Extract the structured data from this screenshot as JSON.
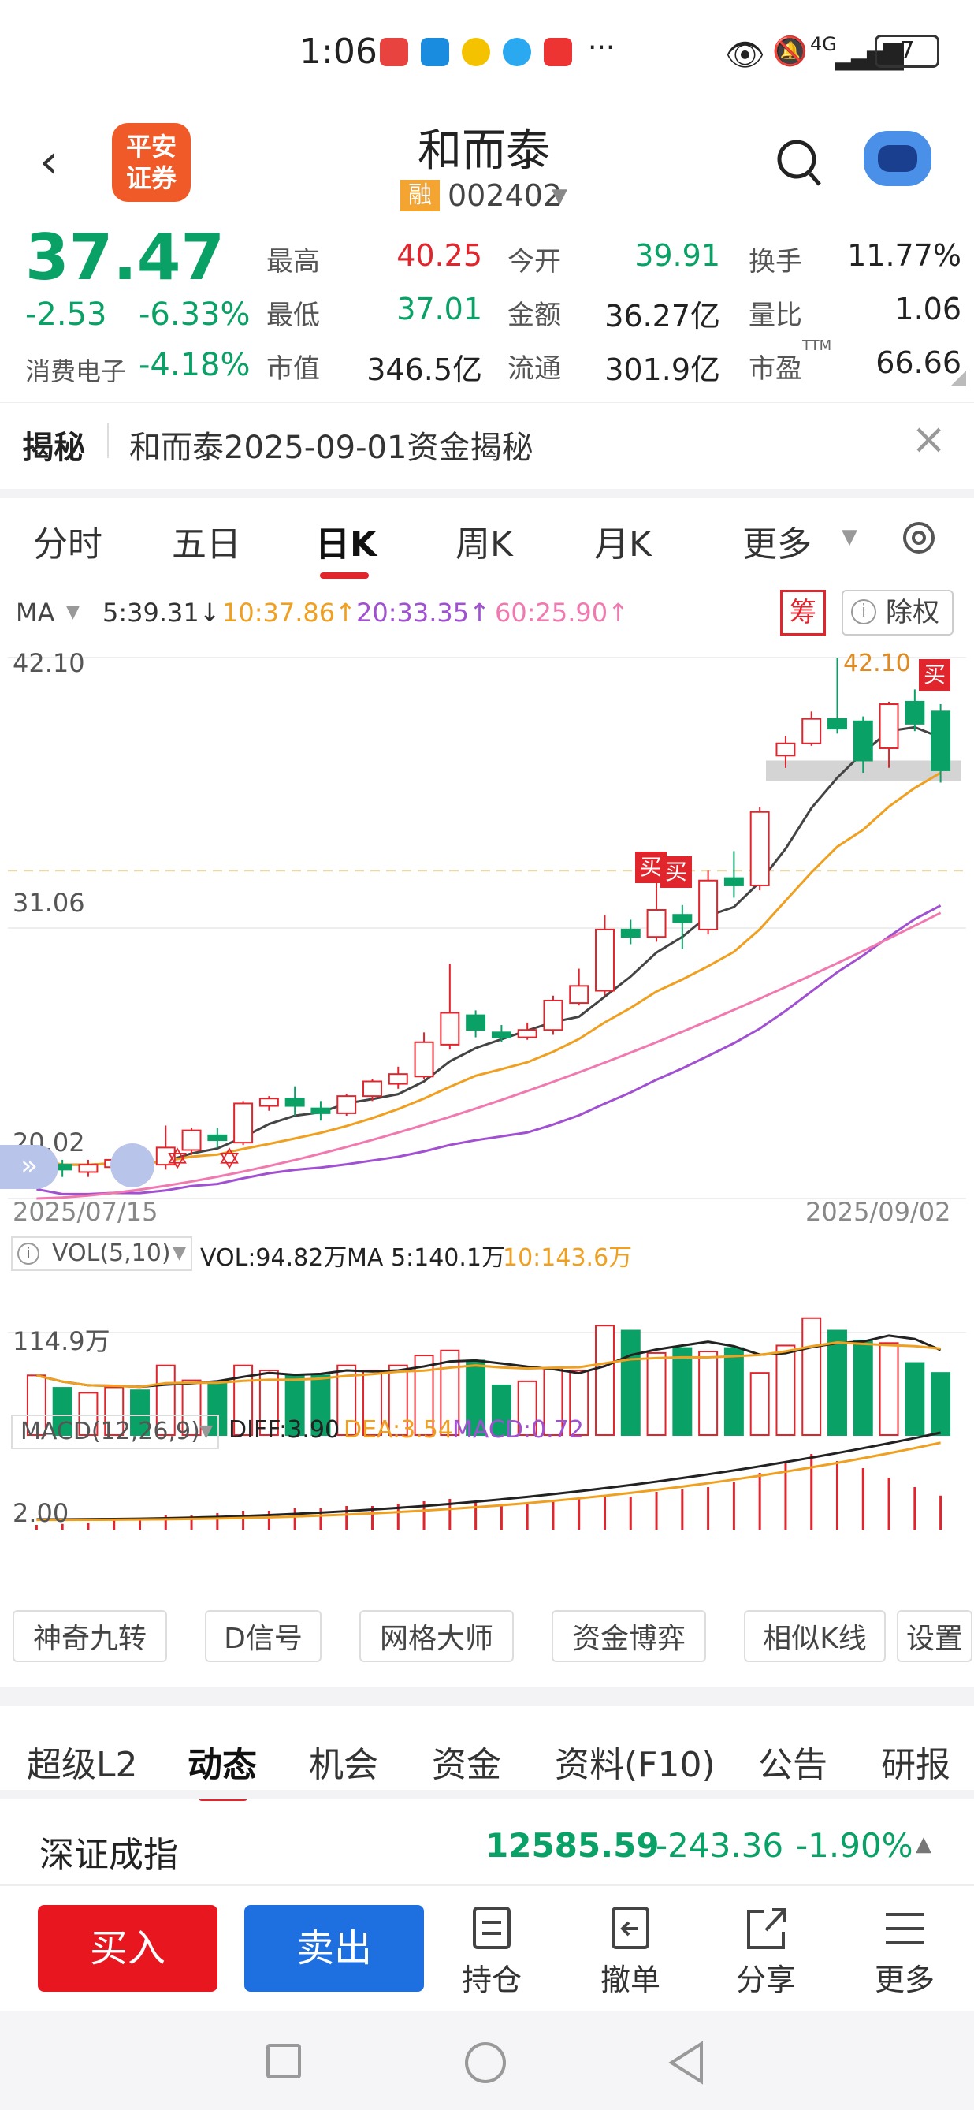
{
  "status": {
    "time": "1:06",
    "dots": "···",
    "net": "4G",
    "battery": "7"
  },
  "header": {
    "title": "和而泰",
    "rong": "融",
    "code": "002402",
    "logo_line1": "平安",
    "logo_line2": "证券"
  },
  "quote": {
    "price": "37.47",
    "change": "-2.53",
    "pct": "-6.33%",
    "sector": "消费电子",
    "sector_pct": "-4.18%",
    "fields": [
      {
        "k": "最高",
        "v": "40.25",
        "c": "red"
      },
      {
        "k": "今开",
        "v": "39.91",
        "c": "green"
      },
      {
        "k": "换手",
        "v": "11.77%",
        "c": "dark"
      },
      {
        "k": "最低",
        "v": "37.01",
        "c": "green"
      },
      {
        "k": "金额",
        "v": "36.27亿",
        "c": "dark"
      },
      {
        "k": "量比",
        "v": "1.06",
        "c": "dark"
      },
      {
        "k": "市值",
        "v": "346.5亿",
        "c": "dark"
      },
      {
        "k": "流通",
        "v": "301.9亿",
        "c": "dark"
      },
      {
        "k": "市盈",
        "v": "66.66",
        "c": "dark"
      }
    ],
    "ttm": "TTM"
  },
  "banner": {
    "label": "揭秘",
    "text": "和而泰2025-09-01资金揭秘"
  },
  "tabs": {
    "items": [
      "分时",
      "五日",
      "日K",
      "周K",
      "月K"
    ],
    "more": "更多",
    "active": "日K"
  },
  "ma": {
    "label": "MA",
    "ma5": "5:39.31↓",
    "ma10": "10:37.86↑",
    "ma20": "20:33.35↑",
    "ma60": "60:25.90↑",
    "chou": "筹",
    "chuquan": "除权"
  },
  "axis": {
    "top": "42.10",
    "mid": "31.06",
    "low": "20.02",
    "date_start": "2025/07/15",
    "date_end": "2025/09/02",
    "peak_label": "42.10",
    "buy": "买"
  },
  "vol": {
    "label": "VOL(5,10)",
    "vol": "VOL:94.82万",
    "ma5": "MA 5:140.1万",
    "ma10": "10:143.6万",
    "axis": "114.9万"
  },
  "macd": {
    "label": "MACD(12,26,9)",
    "diff": "DIFF:3.90",
    "dea": "DEA:3.54",
    "macd": "MACD:0.72",
    "axis": "2.00"
  },
  "chart_data": {
    "type": "candlestick",
    "ylim": [
      20.02,
      42.1
    ],
    "start": "2025/07/15",
    "end": "2025/09/02",
    "candles": [
      [
        20.8,
        21.6,
        21.8,
        20.5
      ],
      [
        21.4,
        21.2,
        21.6,
        20.9
      ],
      [
        21.1,
        21.4,
        21.6,
        20.9
      ],
      [
        21.3,
        21.6,
        21.8,
        21.0
      ],
      [
        21.7,
        21.4,
        21.9,
        21.2
      ],
      [
        21.4,
        22.1,
        23.0,
        21.2
      ],
      [
        22.0,
        22.8,
        22.9,
        21.8
      ],
      [
        22.6,
        22.4,
        22.9,
        22.1
      ],
      [
        22.3,
        23.9,
        24.0,
        22.2
      ],
      [
        23.8,
        24.1,
        24.2,
        23.6
      ],
      [
        24.1,
        23.8,
        24.6,
        23.4
      ],
      [
        23.7,
        23.5,
        24.0,
        23.2
      ],
      [
        23.5,
        24.2,
        24.3,
        23.4
      ],
      [
        24.2,
        24.8,
        24.9,
        24.0
      ],
      [
        24.7,
        25.1,
        25.4,
        24.5
      ],
      [
        25.0,
        26.4,
        26.8,
        24.9
      ],
      [
        26.3,
        27.6,
        29.6,
        26.1
      ],
      [
        27.5,
        26.9,
        27.7,
        26.6
      ],
      [
        26.8,
        26.6,
        27.1,
        26.4
      ],
      [
        26.6,
        26.9,
        27.2,
        26.5
      ],
      [
        26.9,
        28.1,
        28.3,
        26.7
      ],
      [
        28.0,
        28.7,
        29.4,
        27.9
      ],
      [
        28.5,
        31.0,
        31.6,
        28.3
      ],
      [
        31.0,
        30.7,
        31.4,
        30.4
      ],
      [
        30.7,
        31.8,
        32.9,
        30.5
      ],
      [
        31.6,
        31.3,
        32.0,
        30.2
      ],
      [
        31.0,
        33.0,
        33.4,
        30.8
      ],
      [
        33.1,
        32.8,
        34.2,
        32.3
      ],
      [
        32.8,
        35.8,
        36.0,
        32.6
      ],
      [
        38.1,
        38.6,
        38.9,
        37.6
      ],
      [
        38.6,
        39.6,
        39.9,
        38.5
      ],
      [
        39.6,
        39.2,
        42.1,
        39.0
      ],
      [
        39.5,
        37.9,
        39.7,
        37.4
      ],
      [
        38.4,
        40.2,
        40.3,
        37.6
      ],
      [
        40.3,
        39.4,
        40.8,
        39.1
      ],
      [
        39.9,
        37.5,
        40.2,
        37.0
      ]
    ],
    "volume": [
      120,
      95,
      85,
      96,
      90,
      140,
      110,
      105,
      140,
      130,
      120,
      120,
      140,
      130,
      140,
      160,
      170,
      150,
      100,
      108,
      135,
      130,
      220,
      210,
      165,
      175,
      168,
      175,
      125,
      180,
      235,
      210,
      190,
      185,
      145,
      125
    ],
    "macd_bars": [
      0.1,
      0.12,
      0.15,
      0.2,
      0.25,
      0.3,
      0.3,
      0.35,
      0.4,
      0.4,
      0.45,
      0.45,
      0.5,
      0.5,
      0.55,
      0.6,
      0.65,
      0.6,
      0.55,
      0.55,
      0.6,
      0.65,
      0.7,
      0.7,
      0.8,
      0.85,
      0.9,
      1.0,
      1.2,
      1.45,
      1.6,
      1.45,
      1.3,
      1.1,
      0.9,
      0.72
    ]
  },
  "tools": [
    "神奇九转",
    "D信号",
    "网格大师",
    "资金博弈",
    "相似K线",
    "设置"
  ],
  "btabs": {
    "items": [
      "超级L2",
      "动态",
      "机会",
      "资金",
      "资料(F10)",
      "公告",
      "研报"
    ],
    "active": "动态"
  },
  "index": {
    "name": "深证成指",
    "value": "12585.59",
    "chg": "-243.36",
    "pct": "-1.90%"
  },
  "actions": {
    "buy": "买入",
    "sell": "卖出",
    "hold": "持仓",
    "cancel": "撤单",
    "share": "分享",
    "more": "更多"
  }
}
